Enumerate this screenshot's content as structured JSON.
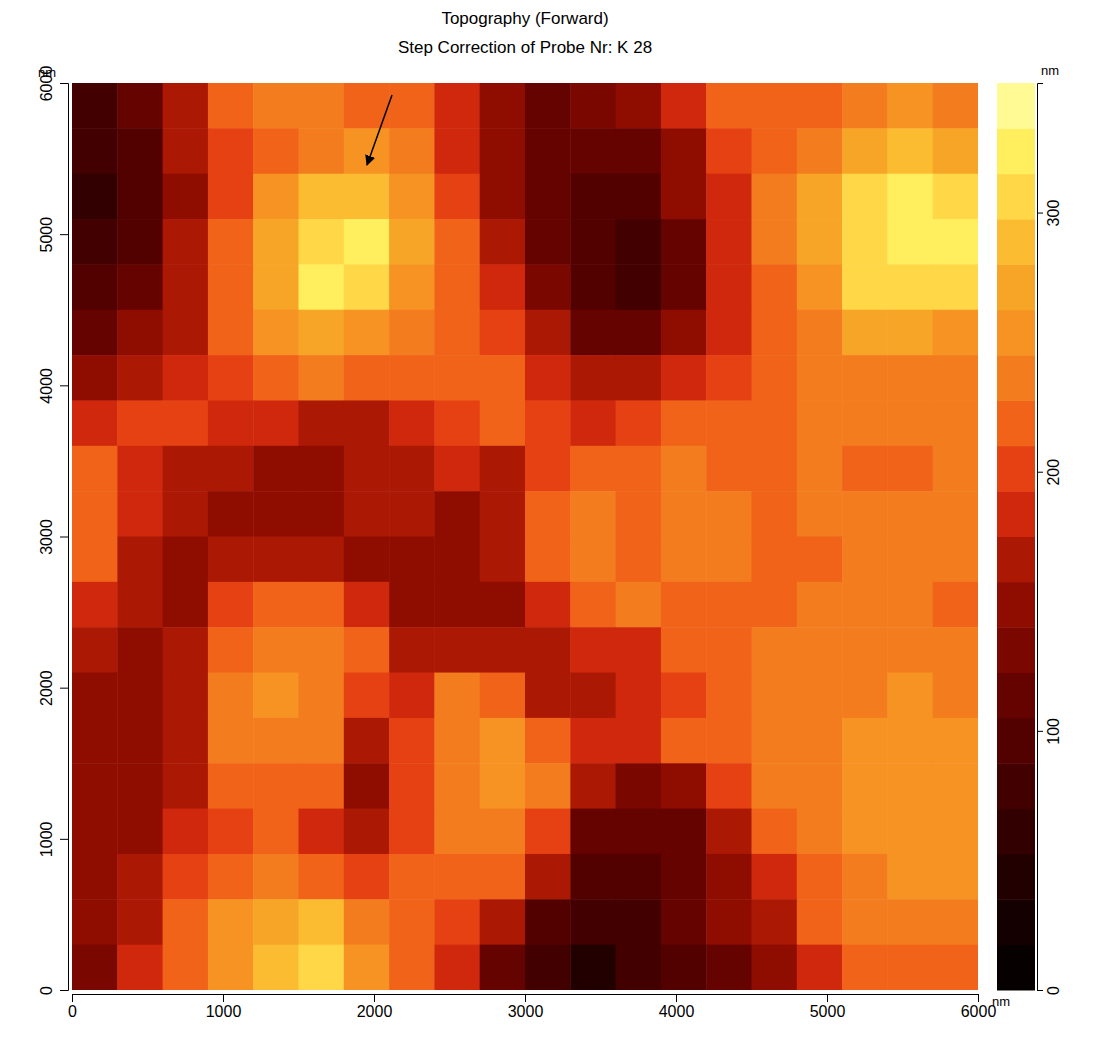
{
  "chart_data": {
    "type": "heatmap",
    "title": "Topography (Forward)",
    "subtitle": "Step Correction of Probe Nr: K 28",
    "x_label": "nm",
    "y_label": "nm",
    "z_label": "nm",
    "xlim": [
      0,
      6000
    ],
    "ylim": [
      0,
      6000
    ],
    "xticks": [
      0,
      1000,
      2000,
      3000,
      4000,
      5000,
      6000
    ],
    "yticks": [
      0,
      1000,
      2000,
      3000,
      4000,
      5000,
      6000
    ],
    "zlim": [
      0,
      350
    ],
    "zticks": [
      0,
      100,
      200,
      300
    ],
    "x": [
      150,
      450,
      750,
      1050,
      1350,
      1650,
      1950,
      2250,
      2550,
      2850,
      3150,
      3450,
      3750,
      4050,
      4350,
      4650,
      4950,
      5250,
      5550,
      5850
    ],
    "y": [
      5850,
      5550,
      5250,
      4950,
      4650,
      4350,
      4050,
      3750,
      3450,
      3150,
      2850,
      2550,
      2250,
      1950,
      1650,
      1350,
      1050,
      750,
      450,
      150
    ],
    "values": [
      [
        80,
        110,
        170,
        210,
        230,
        230,
        220,
        210,
        190,
        150,
        120,
        130,
        140,
        190,
        220,
        210,
        220,
        240,
        250,
        240
      ],
      [
        70,
        100,
        160,
        200,
        220,
        240,
        250,
        230,
        190,
        150,
        110,
        110,
        120,
        150,
        200,
        220,
        240,
        270,
        290,
        270
      ],
      [
        60,
        90,
        150,
        200,
        250,
        280,
        290,
        250,
        200,
        150,
        110,
        100,
        100,
        140,
        190,
        230,
        270,
        300,
        320,
        310
      ],
      [
        70,
        100,
        160,
        220,
        270,
        310,
        320,
        270,
        210,
        170,
        120,
        90,
        70,
        120,
        180,
        230,
        270,
        310,
        330,
        320
      ],
      [
        90,
        120,
        170,
        220,
        270,
        320,
        300,
        260,
        210,
        180,
        130,
        90,
        80,
        120,
        180,
        220,
        260,
        300,
        310,
        300
      ],
      [
        110,
        140,
        170,
        210,
        250,
        270,
        260,
        230,
        210,
        200,
        160,
        120,
        110,
        150,
        190,
        210,
        240,
        270,
        270,
        260
      ],
      [
        150,
        170,
        190,
        200,
        220,
        230,
        220,
        220,
        220,
        210,
        190,
        160,
        160,
        180,
        200,
        210,
        230,
        240,
        240,
        240
      ],
      [
        190,
        200,
        200,
        190,
        180,
        170,
        170,
        180,
        200,
        210,
        200,
        190,
        200,
        210,
        210,
        220,
        230,
        230,
        230,
        230
      ],
      [
        210,
        190,
        170,
        160,
        150,
        140,
        160,
        170,
        180,
        170,
        200,
        210,
        220,
        230,
        220,
        220,
        230,
        220,
        220,
        230
      ],
      [
        220,
        180,
        160,
        150,
        140,
        150,
        160,
        160,
        150,
        170,
        210,
        230,
        220,
        230,
        230,
        220,
        230,
        240,
        240,
        230
      ],
      [
        210,
        170,
        150,
        160,
        170,
        160,
        150,
        140,
        140,
        160,
        210,
        240,
        220,
        230,
        230,
        210,
        220,
        230,
        240,
        230
      ],
      [
        190,
        160,
        150,
        200,
        220,
        210,
        180,
        150,
        140,
        150,
        180,
        220,
        230,
        220,
        210,
        220,
        230,
        240,
        230,
        220
      ],
      [
        170,
        150,
        160,
        220,
        240,
        240,
        210,
        170,
        170,
        170,
        160,
        180,
        190,
        210,
        220,
        230,
        230,
        240,
        240,
        230
      ],
      [
        150,
        140,
        170,
        230,
        250,
        240,
        200,
        190,
        230,
        210,
        170,
        160,
        180,
        200,
        220,
        230,
        230,
        240,
        250,
        240
      ],
      [
        140,
        140,
        170,
        230,
        240,
        230,
        170,
        200,
        240,
        250,
        220,
        190,
        180,
        210,
        220,
        240,
        240,
        250,
        250,
        250
      ],
      [
        140,
        150,
        170,
        210,
        220,
        210,
        140,
        200,
        240,
        250,
        240,
        160,
        130,
        150,
        200,
        230,
        240,
        250,
        260,
        260
      ],
      [
        140,
        150,
        180,
        200,
        220,
        190,
        160,
        200,
        230,
        240,
        200,
        120,
        110,
        120,
        170,
        210,
        230,
        250,
        260,
        260
      ],
      [
        150,
        160,
        200,
        220,
        240,
        220,
        200,
        210,
        220,
        220,
        170,
        100,
        90,
        110,
        150,
        190,
        220,
        240,
        250,
        250
      ],
      [
        140,
        170,
        210,
        250,
        270,
        280,
        240,
        210,
        200,
        160,
        100,
        70,
        80,
        110,
        140,
        170,
        210,
        230,
        240,
        230
      ],
      [
        130,
        180,
        220,
        260,
        290,
        300,
        260,
        220,
        180,
        120,
        70,
        50,
        70,
        100,
        120,
        150,
        190,
        210,
        220,
        210
      ]
    ]
  }
}
